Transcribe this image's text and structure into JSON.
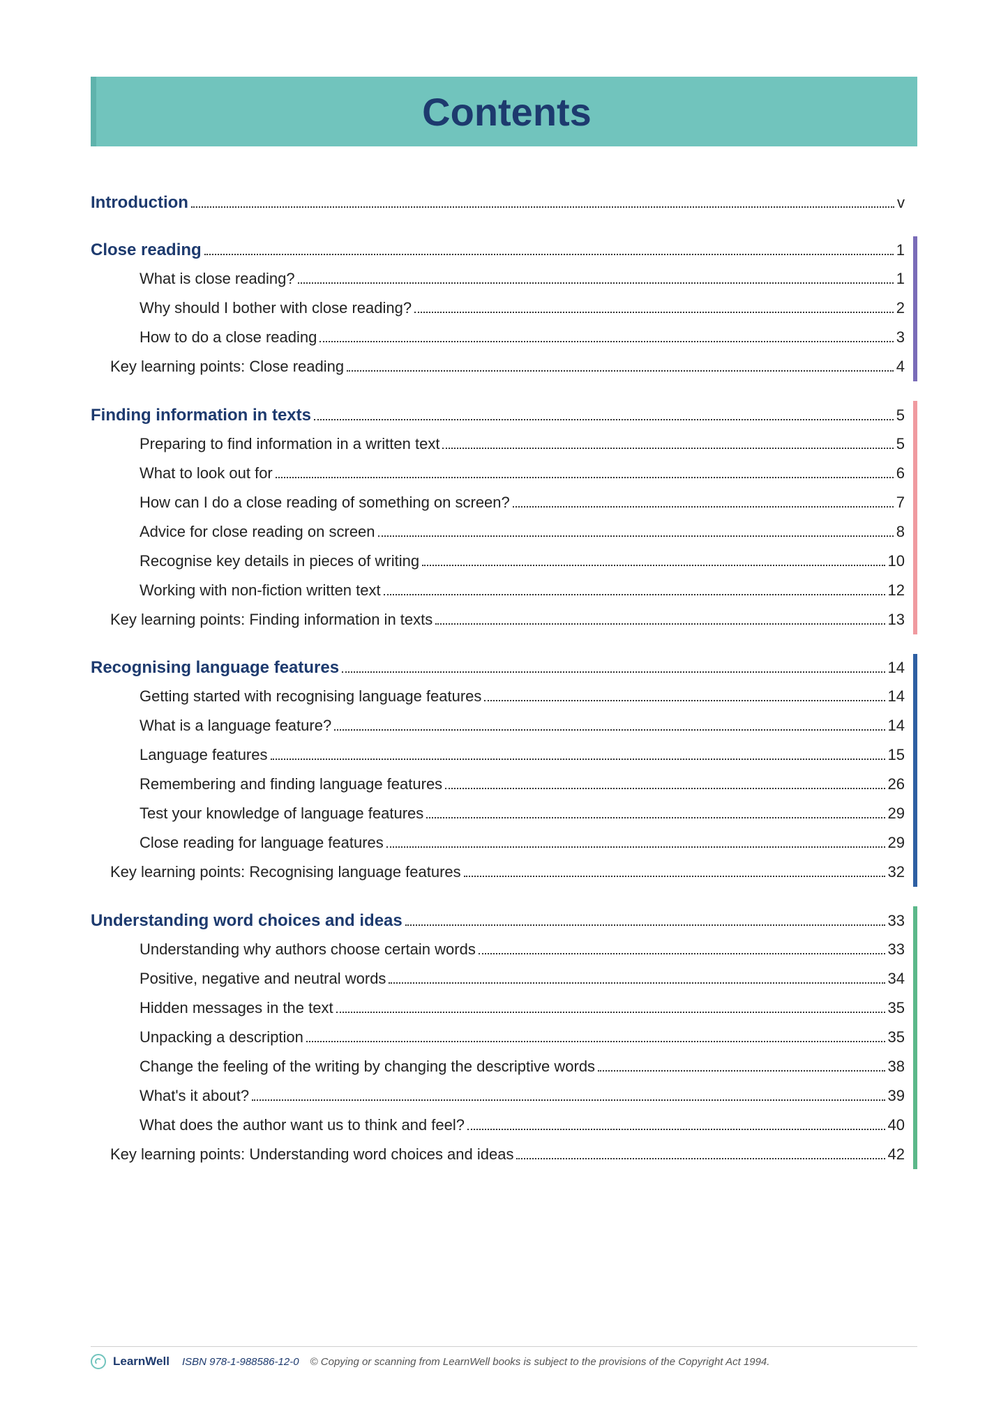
{
  "title": "Contents",
  "colors": {
    "banner_bg": "#71c4bd",
    "banner_border": "#5fb3ac",
    "title_text": "#1d3a6e",
    "heading_text": "#1d3a6e",
    "body_text": "#222222",
    "dot_color": "#333333",
    "page_bg": "#ffffff"
  },
  "sections": [
    {
      "heading": "Introduction",
      "heading_page": "v",
      "accent": "transparent",
      "subs": [],
      "key": null
    },
    {
      "heading": "Close reading",
      "heading_page": "1",
      "accent": "#7a6cb8",
      "subs": [
        {
          "label": "What is close reading?",
          "page": "1"
        },
        {
          "label": "Why should I bother with close reading?",
          "page": "2"
        },
        {
          "label": "How to do a close reading",
          "page": "3"
        }
      ],
      "key": {
        "label": "Key learning points: Close reading",
        "page": "4"
      }
    },
    {
      "heading": "Finding information in texts",
      "heading_page": "5",
      "accent": "#f09aa0",
      "subs": [
        {
          "label": "Preparing to find information in a written text",
          "page": "5"
        },
        {
          "label": "What to look out for",
          "page": "6"
        },
        {
          "label": "How can I do a close reading of something on screen?",
          "page": "7"
        },
        {
          "label": "Advice for close reading on screen",
          "page": "8"
        },
        {
          "label": "Recognise key details in pieces of writing",
          "page": "10"
        },
        {
          "label": "Working with non-fiction written text",
          "page": "12"
        }
      ],
      "key": {
        "label": "Key learning points: Finding information in texts",
        "page": "13"
      }
    },
    {
      "heading": "Recognising language features",
      "heading_page": "14",
      "accent": "#2e5fa3",
      "subs": [
        {
          "label": "Getting started with recognising language features",
          "page": "14"
        },
        {
          "label": "What is a language feature?",
          "page": "14"
        },
        {
          "label": "Language features",
          "page": "15"
        },
        {
          "label": "Remembering and finding language features",
          "page": "26"
        },
        {
          "label": "Test your knowledge of language features",
          "page": "29"
        },
        {
          "label": "Close reading for language features",
          "page": "29"
        }
      ],
      "key": {
        "label": "Key learning points: Recognising language features",
        "page": "32"
      }
    },
    {
      "heading": "Understanding word choices and ideas",
      "heading_page": "33",
      "accent": "#5cb88a",
      "subs": [
        {
          "label": "Understanding why authors choose certain words",
          "page": "33"
        },
        {
          "label": "Positive, negative and neutral words",
          "page": "34"
        },
        {
          "label": "Hidden messages in the text",
          "page": "35"
        },
        {
          "label": "Unpacking a description",
          "page": "35"
        },
        {
          "label": "Change the feeling of the writing by changing the descriptive words",
          "page": "38"
        },
        {
          "label": "What's it about?",
          "page": "39"
        },
        {
          "label": "What does the author want us to think and feel?",
          "page": "40"
        }
      ],
      "key": {
        "label": "Key learning points: Understanding word choices and ideas",
        "page": "42"
      }
    }
  ],
  "footer": {
    "brand": "LearnWell",
    "isbn": "ISBN 978-1-988586-12-0",
    "copyright": "© Copying or scanning from LearnWell books is subject to the provisions of the Copyright Act 1994."
  }
}
